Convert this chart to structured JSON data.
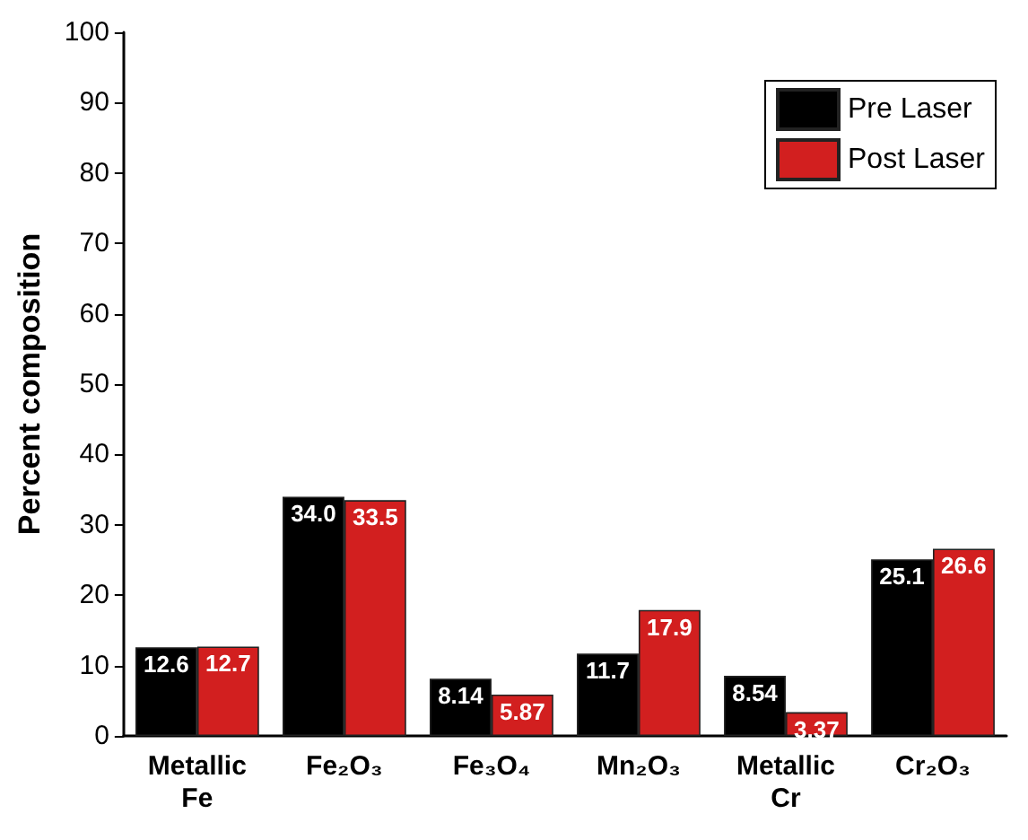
{
  "chart_data": {
    "type": "bar",
    "ylabel": "Percent composition",
    "categories": [
      "Metallic\nFe",
      "Fe₂O₃",
      "Fe₃O₄",
      "Mn₂O₃",
      "Metallic\nCr",
      "Cr₂O₃"
    ],
    "series": [
      {
        "name": "Pre Laser",
        "color": "#000000",
        "values": [
          12.6,
          34.0,
          8.14,
          11.7,
          8.54,
          25.1
        ],
        "value_labels": [
          "12.6",
          "34.0",
          "8.14",
          "11.7",
          "8.54",
          "25.1"
        ]
      },
      {
        "name": "Post Laser",
        "color": "#d21f1f",
        "values": [
          12.7,
          33.5,
          5.87,
          17.9,
          3.37,
          26.6
        ],
        "value_labels": [
          "12.7",
          "33.5",
          "5.87",
          "17.9",
          "3.37",
          "26.6"
        ]
      }
    ],
    "ylim": [
      0,
      100
    ],
    "yticks": [
      0,
      10,
      20,
      30,
      40,
      50,
      60,
      70,
      80,
      90,
      100
    ],
    "grid": false,
    "legend": "top right"
  }
}
